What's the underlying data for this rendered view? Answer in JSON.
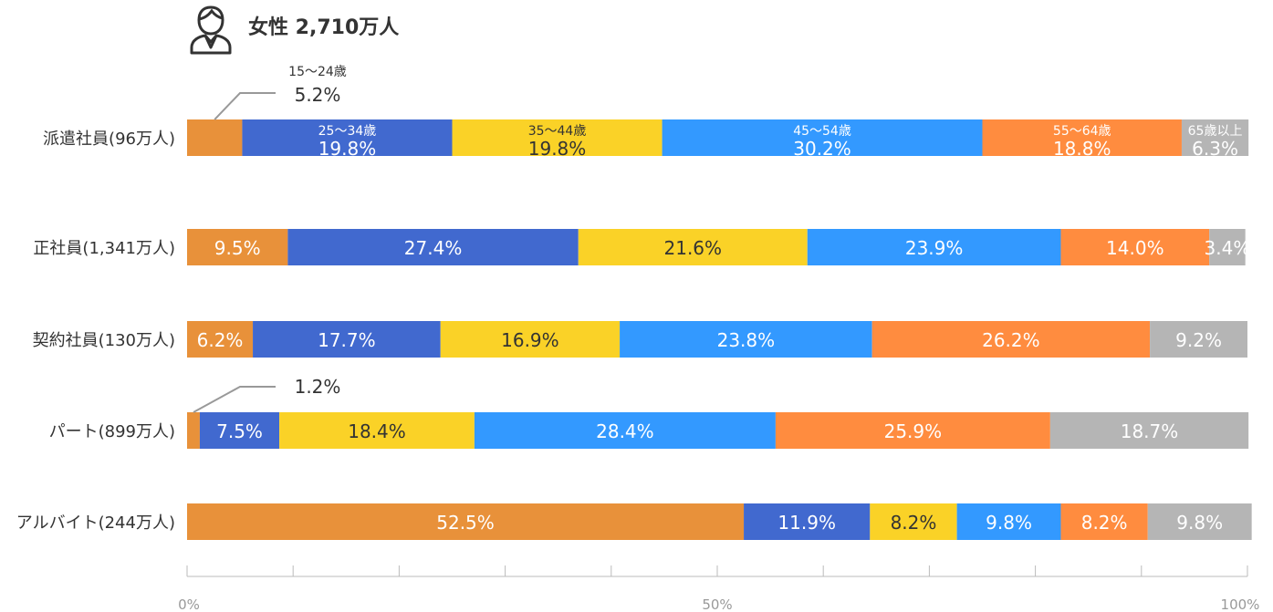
{
  "header": {
    "title": "女性 2,710万人",
    "icon": "person-icon"
  },
  "chart_data": {
    "type": "bar",
    "orientation": "horizontal",
    "stacked": true,
    "percent": true,
    "title": "女性 2,710万人",
    "categories": [
      "派遣社員(96万人)",
      "正社員(1,341万人)",
      "契約社員(130万人)",
      "パート(899万人)",
      "アルバイト(244万人)"
    ],
    "series": [
      {
        "name": "15〜24歳",
        "color": "#E8913A",
        "values": [
          5.2,
          9.5,
          6.2,
          1.2,
          52.5
        ],
        "labels": [
          "5.2%",
          "9.5%",
          "6.2%",
          "1.2%",
          "52.5%"
        ]
      },
      {
        "name": "25〜34歳",
        "color": "#4169CF",
        "values": [
          19.8,
          27.4,
          17.7,
          7.5,
          11.9
        ],
        "labels": [
          "19.8%",
          "27.4%",
          "17.7%",
          "7.5%",
          "11.9%"
        ]
      },
      {
        "name": "35〜44歳",
        "color": "#FAD227",
        "values": [
          19.8,
          21.6,
          16.9,
          18.4,
          8.2
        ],
        "labels": [
          "19.8%",
          "21.6%",
          "16.9%",
          "18.4%",
          "8.2%"
        ]
      },
      {
        "name": "45〜54歳",
        "color": "#3399FF",
        "values": [
          30.2,
          23.9,
          23.8,
          28.4,
          9.8
        ],
        "labels": [
          "30.2%",
          "23.9%",
          "23.8%",
          "28.4%",
          "9.8%"
        ]
      },
      {
        "name": "55〜64歳",
        "color": "#FF8C3F",
        "values": [
          18.8,
          14.0,
          26.2,
          25.9,
          8.2
        ],
        "labels": [
          "18.8%",
          "14.0%",
          "26.2%",
          "25.9%",
          "8.2%"
        ]
      },
      {
        "name": "65歳以上",
        "color": "#B5B5B5",
        "values": [
          6.3,
          3.4,
          9.2,
          18.7,
          9.8
        ],
        "labels": [
          "6.3%",
          "3.4%",
          "9.2%",
          "18.7%",
          "9.8%"
        ]
      }
    ],
    "xlim": [
      0,
      100
    ],
    "xticks": [
      0,
      10,
      20,
      30,
      40,
      50,
      60,
      70,
      80,
      90,
      100
    ],
    "xtick_labels": {
      "0": "0%",
      "50": "50%",
      "100": "100%"
    },
    "legend": "inline labels in first row"
  }
}
